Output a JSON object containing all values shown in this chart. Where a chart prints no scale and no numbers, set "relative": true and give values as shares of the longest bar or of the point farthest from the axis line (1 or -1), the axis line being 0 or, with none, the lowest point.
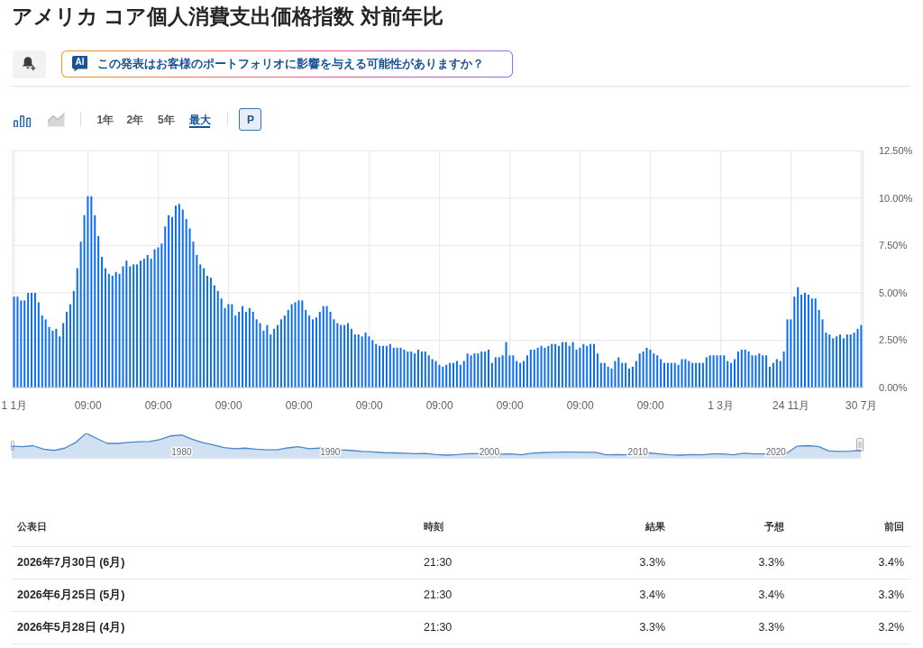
{
  "chart_data": [
    {
      "type": "bar",
      "title": "アメリカ コア個人消費支出価格指数 対前年比",
      "annotations": [
        "AI",
        "この発表はお客様のポートフォリオに影響を与える可能性がありますか？",
        "1年",
        "2年",
        "5年",
        "最大",
        "P"
      ],
      "categories": [
        "1 1月",
        null,
        null,
        null,
        null,
        null,
        null,
        null,
        null,
        null,
        null,
        null,
        null,
        null,
        null,
        null,
        null,
        null,
        null,
        null,
        null,
        "09:00",
        null,
        null,
        null,
        null,
        null,
        null,
        null,
        null,
        null,
        null,
        null,
        null,
        null,
        null,
        null,
        null,
        null,
        null,
        null,
        "09:00",
        null,
        null,
        null,
        null,
        null,
        null,
        null,
        null,
        null,
        null,
        null,
        null,
        null,
        null,
        null,
        null,
        null,
        null,
        null,
        "09:00",
        null,
        null,
        null,
        null,
        null,
        null,
        null,
        null,
        null,
        null,
        null,
        null,
        null,
        null,
        null,
        null,
        null,
        null,
        null,
        "09:00",
        null,
        null,
        null,
        null,
        null,
        null,
        null,
        null,
        null,
        null,
        null,
        null,
        null,
        null,
        null,
        null,
        null,
        null,
        null,
        "09:00",
        null,
        null,
        null,
        null,
        null,
        null,
        null,
        null,
        null,
        null,
        null,
        null,
        null,
        null,
        null,
        null,
        null,
        null,
        null,
        "09:00",
        null,
        null,
        null,
        null,
        null,
        null,
        null,
        null,
        null,
        null,
        null,
        null,
        null,
        null,
        null,
        null,
        null,
        null,
        null,
        "09:00",
        null,
        null,
        null,
        null,
        null,
        null,
        null,
        null,
        null,
        null,
        null,
        null,
        null,
        null,
        null,
        null,
        null,
        null,
        null,
        "09:00",
        null,
        null,
        null,
        null,
        null,
        null,
        null,
        null,
        null,
        null,
        null,
        null,
        null,
        null,
        null,
        null,
        null,
        null,
        null,
        "09:00",
        null,
        null,
        null,
        null,
        null,
        null,
        null,
        null,
        null,
        null,
        null,
        null,
        null,
        null,
        null,
        null,
        null,
        null,
        null,
        "1 3月",
        null,
        null,
        null,
        null,
        null,
        null,
        null,
        null,
        null,
        null,
        null,
        null,
        null,
        null,
        null,
        null,
        null,
        null,
        null,
        "24 11月",
        null,
        null,
        null,
        null,
        null,
        null,
        null,
        null,
        null,
        null,
        null,
        null,
        null,
        null,
        null,
        null,
        null,
        null,
        null,
        "30 7月"
      ],
      "values": [
        4.8,
        4.8,
        4.6,
        4.6,
        5.0,
        5.0,
        5.0,
        4.5,
        3.8,
        3.6,
        3.2,
        3.0,
        3.1,
        2.7,
        3.4,
        4.0,
        4.4,
        5.1,
        6.3,
        7.7,
        9.1,
        10.1,
        10.1,
        9.1,
        8.0,
        6.9,
        6.3,
        6.0,
        5.9,
        6.1,
        6.0,
        6.4,
        6.7,
        6.4,
        6.5,
        6.5,
        6.7,
        6.8,
        7.0,
        6.8,
        7.3,
        7.4,
        7.6,
        8.5,
        9.1,
        9.0,
        9.6,
        9.7,
        9.4,
        8.9,
        8.4,
        7.7,
        7.0,
        6.5,
        6.3,
        5.9,
        5.8,
        5.4,
        5.1,
        4.7,
        4.2,
        4.4,
        4.4,
        3.8,
        4.0,
        4.3,
        4.0,
        4.2,
        4.0,
        3.6,
        3.4,
        3.0,
        3.3,
        2.8,
        3.1,
        3.3,
        3.6,
        3.8,
        4.1,
        4.4,
        4.5,
        4.6,
        4.6,
        4.1,
        3.8,
        3.6,
        3.7,
        4.0,
        4.3,
        4.3,
        4.0,
        3.6,
        3.4,
        3.3,
        3.3,
        3.4,
        3.1,
        2.8,
        2.8,
        2.7,
        2.9,
        2.7,
        2.5,
        2.3,
        2.2,
        2.2,
        2.2,
        2.3,
        2.1,
        2.1,
        2.1,
        2.0,
        1.9,
        1.9,
        1.8,
        2.0,
        1.9,
        1.9,
        1.7,
        1.5,
        1.4,
        1.2,
        1.1,
        1.2,
        1.3,
        1.3,
        1.4,
        1.2,
        1.4,
        1.8,
        1.7,
        1.8,
        1.8,
        1.9,
        1.9,
        2.0,
        1.3,
        1.6,
        1.6,
        1.7,
        2.4,
        1.7,
        1.7,
        1.4,
        1.3,
        1.4,
        1.7,
        2.0,
        2.0,
        2.1,
        2.2,
        2.1,
        2.2,
        2.3,
        2.3,
        2.2,
        2.4,
        2.4,
        2.2,
        2.4,
        2.0,
        2.1,
        2.3,
        2.2,
        2.3,
        2.3,
        1.8,
        1.3,
        1.3,
        1.1,
        1.0,
        1.4,
        1.6,
        1.3,
        1.3,
        1.0,
        1.1,
        1.4,
        1.8,
        1.9,
        2.1,
        2.0,
        1.8,
        1.7,
        1.5,
        1.3,
        1.3,
        1.3,
        1.3,
        1.2,
        1.5,
        1.5,
        1.4,
        1.3,
        1.3,
        1.3,
        1.3,
        1.6,
        1.7,
        1.7,
        1.7,
        1.7,
        1.7,
        1.4,
        1.3,
        1.5,
        1.9,
        2.0,
        2.0,
        1.9,
        1.7,
        1.7,
        1.8,
        1.7,
        1.7,
        1.1,
        1.3,
        1.5,
        1.4,
        1.9,
        3.6,
        3.6,
        4.8,
        5.3,
        4.9,
        5.0,
        4.9,
        4.7,
        4.7,
        4.1,
        3.6,
        2.9,
        2.8,
        2.6,
        2.7,
        2.8,
        2.6,
        2.8,
        2.8,
        2.9,
        3.1,
        3.3
      ],
      "color": "#0b6cf0",
      "ylim": [
        0,
        12.5
      ],
      "yticks": [
        {
          "value": 0,
          "label": "0.00%"
        },
        {
          "value": 2.5,
          "label": "2.50%"
        },
        {
          "value": 5,
          "label": "5.00%"
        },
        {
          "value": 7.5,
          "label": "7.50%"
        },
        {
          "value": 10,
          "label": "10.00%"
        },
        {
          "value": 12.5,
          "label": "12.50%"
        }
      ],
      "grid": true
    },
    {
      "type": "area",
      "relative": true,
      "color": "#4a86cc",
      "categories": [
        null,
        null,
        null,
        null,
        null,
        null,
        null,
        null,
        null,
        null,
        null,
        null,
        null,
        null,
        null,
        null,
        "1980",
        null,
        null,
        null,
        null,
        null,
        null,
        null,
        null,
        null,
        null,
        null,
        null,
        null,
        "1990",
        null,
        null,
        null,
        null,
        null,
        null,
        null,
        null,
        null,
        null,
        null,
        null,
        null,
        null,
        "2000",
        null,
        null,
        null,
        null,
        null,
        null,
        null,
        null,
        null,
        null,
        null,
        null,
        null,
        "2010",
        null,
        null,
        null,
        null,
        null,
        null,
        null,
        null,
        null,
        null,
        null,
        null,
        "2020",
        null,
        null,
        null,
        null,
        null,
        null,
        null,
        null
      ],
      "values": [
        0.48,
        0.46,
        0.5,
        0.36,
        0.31,
        0.4,
        0.62,
        1,
        0.79,
        0.59,
        0.59,
        0.63,
        0.66,
        0.67,
        0.75,
        0.89,
        0.93,
        0.76,
        0.62,
        0.53,
        0.42,
        0.38,
        0.4,
        0.36,
        0.33,
        0.33,
        0.41,
        0.46,
        0.38,
        0.4,
        0.4,
        0.33,
        0.31,
        0.27,
        0.25,
        0.22,
        0.21,
        0.2,
        0.18,
        0.19,
        0.14,
        0.12,
        0.14,
        0.18,
        0.18,
        0.2,
        0.16,
        0.17,
        0.13,
        0.2,
        0.22,
        0.23,
        0.24,
        0.24,
        0.23,
        0.23,
        0.13,
        0.14,
        0.13,
        0.14,
        0.21,
        0.17,
        0.13,
        0.12,
        0.14,
        0.13,
        0.17,
        0.17,
        0.13,
        0.2,
        0.17,
        0.17,
        0.13,
        0.19,
        0.48,
        0.5,
        0.47,
        0.29,
        0.27,
        0.28,
        0.31
      ]
    },
    {
      "type": "other",
      "annotations": [
        "公表日",
        "時刻",
        "結果",
        "予想",
        "前回",
        "2026年7月30日 (6月)",
        "21:30",
        "3.3%",
        "3.3%",
        "3.4%",
        "2026年6月25日 (5月)",
        "21:30",
        "3.4%",
        "3.4%",
        "3.3%",
        "2026年5月28日 (4月)",
        "21:30",
        "3.3%",
        "3.3%",
        "3.2%"
      ]
    }
  ]
}
